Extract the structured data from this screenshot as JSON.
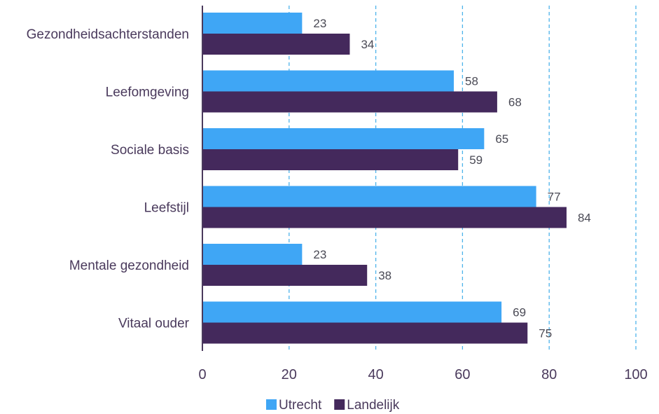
{
  "chart_data": {
    "type": "bar",
    "orientation": "horizontal",
    "categories": [
      "Gezondheidsachterstanden",
      "Leefomgeving",
      "Sociale basis",
      "Leefstijl",
      "Mentale gezondheid",
      "Vitaal ouder"
    ],
    "series": [
      {
        "name": "Utrecht",
        "values": [
          23,
          58,
          65,
          77,
          23,
          69
        ],
        "color": "#3fa6f5"
      },
      {
        "name": "Landelijk",
        "values": [
          34,
          68,
          59,
          84,
          38,
          75
        ],
        "color": "#44295c"
      }
    ],
    "xlim": [
      0,
      100
    ],
    "xticks": [
      0,
      20,
      40,
      60,
      80,
      100
    ],
    "grid": "vertical dashed",
    "gridColor": "#4db3ea",
    "textColor": "#4a3a5c",
    "legend": "bottom-center"
  }
}
